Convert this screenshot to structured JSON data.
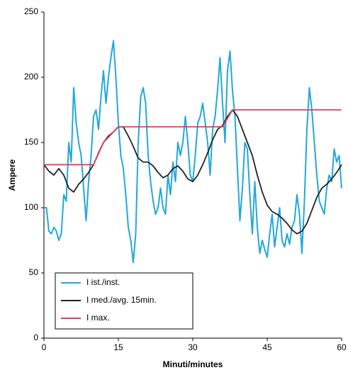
{
  "chart_data": {
    "type": "line",
    "xlabel": "Minuti/minutes",
    "ylabel": "Ampere",
    "xlim": [
      0,
      60
    ],
    "xticks": [
      0,
      15,
      30,
      45,
      60
    ],
    "ylim": [
      0,
      250
    ],
    "yticks": [
      0,
      50,
      100,
      150,
      200,
      250
    ],
    "grid": false,
    "legend": "lower left",
    "series": [
      {
        "name": "I ist./inst.",
        "color": "#22a8dc",
        "x": [
          0,
          0.5,
          1,
          1.5,
          2,
          2.5,
          3,
          3.5,
          4,
          4.5,
          5,
          5.5,
          6,
          6.5,
          7,
          7.5,
          8,
          8.5,
          9,
          9.5,
          10,
          10.5,
          11,
          11.5,
          12,
          12.5,
          13,
          13.5,
          14,
          14.5,
          15,
          15.5,
          16,
          16.5,
          17,
          17.5,
          18,
          18.5,
          19,
          19.5,
          20,
          20.5,
          21,
          21.5,
          22,
          22.5,
          23,
          23.5,
          24,
          24.5,
          25,
          25.5,
          26,
          26.5,
          27,
          27.5,
          28,
          28.5,
          29,
          29.5,
          30,
          30.5,
          31,
          31.5,
          32,
          32.5,
          33,
          33.5,
          34,
          34.5,
          35,
          35.5,
          36,
          36.5,
          37,
          37.5,
          38,
          38.5,
          39,
          39.5,
          40,
          40.5,
          41,
          41.5,
          42,
          42.5,
          43,
          43.5,
          44,
          44.5,
          45,
          45.5,
          46,
          46.5,
          47,
          47.5,
          48,
          48.5,
          49,
          49.5,
          50,
          50.5,
          51,
          51.5,
          52,
          52.5,
          53,
          53.5,
          54,
          54.5,
          55,
          55.5,
          56,
          56.5,
          57,
          57.5,
          58,
          58.5,
          59,
          59.5,
          60
        ],
        "values": [
          100,
          100,
          82,
          80,
          85,
          82,
          75,
          80,
          110,
          105,
          150,
          135,
          192,
          165,
          150,
          140,
          115,
          90,
          120,
          140,
          170,
          175,
          160,
          185,
          205,
          180,
          200,
          215,
          228,
          200,
          165,
          140,
          130,
          110,
          85,
          75,
          58,
          80,
          150,
          185,
          192,
          180,
          140,
          120,
          105,
          95,
          100,
          115,
          100,
          95,
          125,
          110,
          135,
          120,
          150,
          140,
          150,
          170,
          150,
          125,
          120,
          140,
          165,
          170,
          180,
          165,
          150,
          125,
          160,
          170,
          190,
          215,
          180,
          150,
          205,
          220,
          190,
          170,
          130,
          90,
          115,
          150,
          145,
          110,
          80,
          120,
          85,
          65,
          75,
          68,
          62,
          80,
          95,
          70,
          85,
          100,
          75,
          70,
          80,
          72,
          85,
          90,
          110,
          95,
          65,
          105,
          160,
          192,
          175,
          150,
          125,
          105,
          100,
          95,
          115,
          125,
          120,
          145,
          135,
          140,
          115
        ]
      },
      {
        "name": "I med./avg. 15min.",
        "color": "#222222",
        "x": [
          0,
          1,
          2,
          3,
          4,
          5,
          6,
          7,
          8,
          9,
          10,
          11,
          12,
          13,
          14,
          15,
          16,
          17,
          18,
          19,
          20,
          21,
          22,
          23,
          24,
          25,
          26,
          27,
          28,
          29,
          30,
          31,
          32,
          33,
          34,
          35,
          36,
          37,
          38,
          39,
          40,
          41,
          42,
          43,
          44,
          45,
          46,
          47,
          48,
          49,
          50,
          51,
          52,
          53,
          54,
          55,
          56,
          57,
          58,
          59,
          60
        ],
        "values": [
          133,
          128,
          125,
          130,
          125,
          115,
          112,
          118,
          122,
          127,
          133,
          142,
          150,
          155,
          158,
          162,
          162,
          155,
          147,
          138,
          135,
          135,
          132,
          127,
          123,
          125,
          130,
          132,
          128,
          122,
          120,
          125,
          133,
          142,
          152,
          160,
          163,
          170,
          175,
          170,
          160,
          150,
          140,
          125,
          112,
          102,
          97,
          95,
          92,
          88,
          83,
          80,
          82,
          88,
          98,
          108,
          115,
          118,
          122,
          127,
          133
        ]
      },
      {
        "name": "I max.",
        "color": "#e0405a",
        "x": [
          0,
          10,
          12,
          14,
          15,
          36,
          38,
          60
        ],
        "values": [
          133,
          133,
          150,
          158,
          162,
          162,
          175,
          175
        ]
      }
    ]
  }
}
